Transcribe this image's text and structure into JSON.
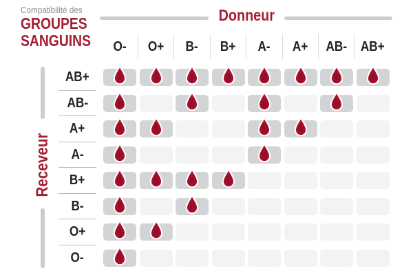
{
  "title": {
    "line1": "Compatibilité des",
    "line2": "GROUPES",
    "line3": "SANGUINS"
  },
  "donor_axis": {
    "label": "Donneur"
  },
  "receiver_axis": {
    "label": "Receveur"
  },
  "chart_data": {
    "type": "heatmap",
    "title": "Compatibilité des GROUPES SANGUINS",
    "x_axis_label": "Donneur",
    "y_axis_label": "Receveur",
    "columns": [
      "O-",
      "O+",
      "B-",
      "B+",
      "A-",
      "A+",
      "AB-",
      "AB+"
    ],
    "rows": [
      "AB+",
      "AB-",
      "A+",
      "A-",
      "B+",
      "B-",
      "O+",
      "O-"
    ],
    "values": [
      [
        1,
        1,
        1,
        1,
        1,
        1,
        1,
        1
      ],
      [
        1,
        0,
        1,
        0,
        1,
        0,
        1,
        0
      ],
      [
        1,
        1,
        0,
        0,
        1,
        1,
        0,
        0
      ],
      [
        1,
        0,
        0,
        0,
        1,
        0,
        0,
        0
      ],
      [
        1,
        1,
        1,
        1,
        0,
        0,
        0,
        0
      ],
      [
        1,
        0,
        1,
        0,
        0,
        0,
        0,
        0
      ],
      [
        1,
        1,
        0,
        0,
        0,
        0,
        0,
        0
      ],
      [
        1,
        0,
        0,
        0,
        0,
        0,
        0,
        0
      ]
    ],
    "cell_icon": "blood-drop-icon",
    "legend_position": "none",
    "grid": "off"
  },
  "colors": {
    "accent_red": "#a41e33",
    "drop_red": "#ae1130",
    "drop_red_dark": "#8e0c26",
    "cell_compatible_bg": "#d3d4d5",
    "cell_incompatible_bg": "#f2f3f3",
    "axis_bar_gray": "#cbcccd",
    "column_separator_gray": "#dcdcdc",
    "row_separator_gray": "#b9b9b9",
    "label_dark": "#232323",
    "subtitle_gray": "#8e8e8e",
    "background": "#ffffff"
  }
}
